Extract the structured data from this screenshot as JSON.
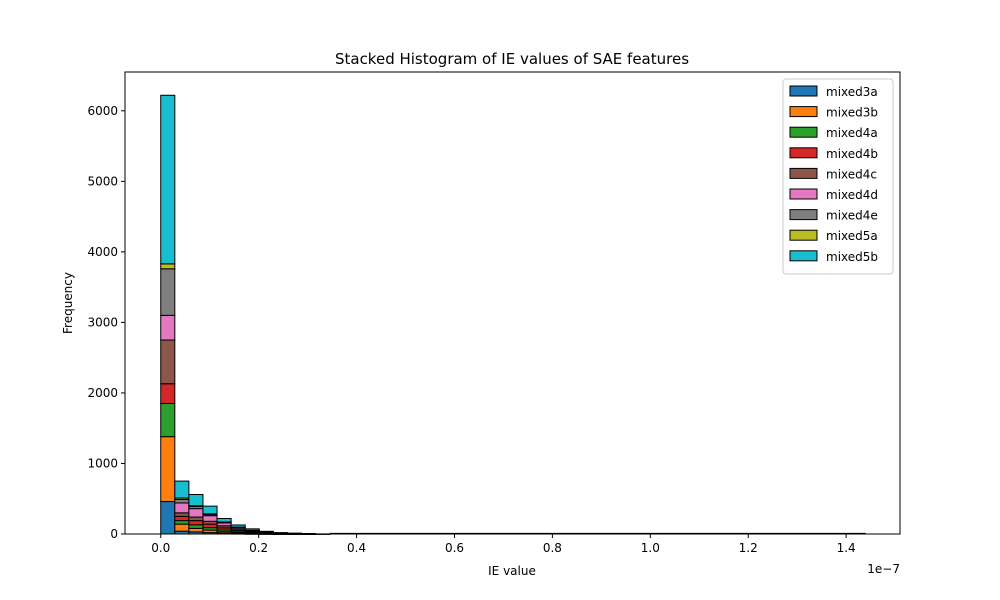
{
  "chart_data": {
    "type": "bar",
    "stacked": true,
    "histogram": true,
    "title": "Stacked Histogram of IE values of SAE features",
    "xlabel": "IE value",
    "ylabel": "Frequency",
    "x_offset_label": "1e−7",
    "xlim": [
      -0.073,
      1.51
    ],
    "ylim": [
      0,
      6550
    ],
    "xticks": [
      0.0,
      0.2,
      0.4,
      0.6,
      0.8,
      1.0,
      1.2,
      1.4
    ],
    "xtick_labels": [
      "0.0",
      "0.2",
      "0.4",
      "0.6",
      "0.8",
      "1.0",
      "1.2",
      "1.4"
    ],
    "yticks": [
      0,
      1000,
      2000,
      3000,
      4000,
      5000,
      6000
    ],
    "ytick_labels": [
      "0",
      "1000",
      "2000",
      "3000",
      "4000",
      "5000",
      "6000"
    ],
    "grid": false,
    "legend_position": "top-right",
    "bin_start": 0.0,
    "bin_width": 0.02875,
    "series": [
      {
        "name": "mixed3a",
        "color": "#1f77b4",
        "values": [
          460,
          40,
          30,
          20,
          12,
          6,
          3,
          2,
          1,
          0,
          0,
          0
        ]
      },
      {
        "name": "mixed3b",
        "color": "#ff7f0e",
        "values": [
          920,
          100,
          50,
          35,
          20,
          12,
          6,
          3,
          2,
          1,
          0,
          0
        ]
      },
      {
        "name": "mixed4a",
        "color": "#2ca02c",
        "values": [
          470,
          50,
          50,
          35,
          25,
          12,
          8,
          4,
          2,
          1,
          1,
          0
        ]
      },
      {
        "name": "mixed4b",
        "color": "#d62728",
        "values": [
          280,
          60,
          60,
          50,
          30,
          20,
          10,
          5,
          3,
          2,
          1,
          0
        ]
      },
      {
        "name": "mixed4c",
        "color": "#8c564b",
        "values": [
          620,
          50,
          50,
          40,
          30,
          20,
          12,
          6,
          3,
          2,
          1,
          0
        ]
      },
      {
        "name": "mixed4d",
        "color": "#e377c2",
        "values": [
          350,
          140,
          120,
          80,
          40,
          20,
          10,
          5,
          3,
          2,
          1,
          0
        ]
      },
      {
        "name": "mixed4e",
        "color": "#7f7f7f",
        "values": [
          660,
          50,
          30,
          20,
          10,
          6,
          3,
          2,
          1,
          1,
          0,
          0
        ]
      },
      {
        "name": "mixed5a",
        "color": "#bcbd22",
        "values": [
          70,
          20,
          10,
          5,
          3,
          2,
          1,
          1,
          0,
          0,
          0,
          0
        ]
      },
      {
        "name": "mixed5b",
        "color": "#17becf",
        "values": [
          2390,
          240,
          160,
          110,
          50,
          30,
          20,
          10,
          5,
          3,
          2,
          1
        ]
      }
    ],
    "tail_extent": 1.44
  }
}
